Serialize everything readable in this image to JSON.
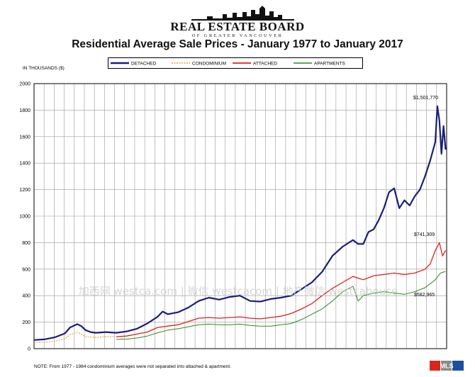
{
  "header": {
    "brand": "REAL ESTATE BOARD",
    "brand_sub": "OF GREATER VANCOUVER"
  },
  "watermark": "加西网 westca.com | 微信 westcacom | 地产微信 westcahouse",
  "note": "NOTE: From 1977 - 1984 condominium averages were not separated into attached & apartment.",
  "mls_logo": "MLS",
  "colors": {
    "detached": "#1a1f78",
    "condominium": "#e8a23c",
    "attached": "#e0201c",
    "apartments": "#2a8a1e",
    "grid": "#9a9a9a"
  },
  "chart_data": {
    "type": "line",
    "title": "Residential Average Sale Prices  -  January 1977 to January 2017",
    "ylabel": "IN THOUSANDS ($)",
    "xlabel": "",
    "ylim": [
      0,
      2000
    ],
    "yticks": [
      0,
      200,
      400,
      600,
      800,
      1000,
      1200,
      1400,
      1600,
      1800,
      2000
    ],
    "x_range": [
      1977.0,
      2017.1
    ],
    "grid": true,
    "vertical_grid_lines": 41,
    "legend_position": "top",
    "end_labels": [
      "$1,501,770",
      "$741,309",
      "$582,965"
    ],
    "series": [
      {
        "name": "DETACHED",
        "x": [
          1977.0,
          1978.0,
          1979.0,
          1980.0,
          1980.5,
          1981.2,
          1981.6,
          1982.0,
          1982.5,
          1983.0,
          1984.0,
          1985.0,
          1986.0,
          1987.0,
          1988.0,
          1989.0,
          1989.5,
          1990.0,
          1991.0,
          1992.0,
          1993.0,
          1994.0,
          1995.0,
          1996.0,
          1997.0,
          1998.0,
          1999.0,
          2000.0,
          2001.0,
          2002.0,
          2003.0,
          2004.0,
          2005.0,
          2006.0,
          2007.0,
          2008.0,
          2008.5,
          2009.0,
          2009.5,
          2010.0,
          2010.5,
          2011.0,
          2011.5,
          2012.0,
          2012.5,
          2013.0,
          2013.5,
          2014.0,
          2014.5,
          2015.0,
          2015.5,
          2016.0,
          2016.2,
          2016.4,
          2016.6,
          2016.8,
          2017.0
        ],
        "y": [
          65,
          70,
          85,
          115,
          160,
          185,
          170,
          140,
          125,
          120,
          125,
          120,
          130,
          150,
          190,
          240,
          280,
          260,
          275,
          310,
          360,
          385,
          370,
          390,
          400,
          360,
          355,
          375,
          385,
          400,
          450,
          500,
          580,
          700,
          770,
          820,
          790,
          790,
          880,
          900,
          970,
          1060,
          1180,
          1210,
          1060,
          1120,
          1080,
          1150,
          1200,
          1300,
          1420,
          1560,
          1830,
          1720,
          1470,
          1680,
          1502
        ]
      },
      {
        "name": "CONDOMINIUM",
        "x": [
          1977.0,
          1978.0,
          1979.0,
          1980.0,
          1980.5,
          1981.2,
          1981.6,
          1982.0,
          1983.0,
          1984.0,
          1984.9
        ],
        "y": [
          45,
          48,
          55,
          75,
          105,
          125,
          110,
          90,
          85,
          90,
          92
        ]
      },
      {
        "name": "ATTACHED",
        "x": [
          1985.0,
          1986.0,
          1987.0,
          1988.0,
          1989.0,
          1990.0,
          1991.0,
          1992.0,
          1993.0,
          1994.0,
          1995.0,
          1996.0,
          1997.0,
          1998.0,
          1999.0,
          2000.0,
          2001.0,
          2002.0,
          2003.0,
          2004.0,
          2005.0,
          2006.0,
          2007.0,
          2008.0,
          2009.0,
          2010.0,
          2011.0,
          2012.0,
          2013.0,
          2014.0,
          2015.0,
          2015.5,
          2016.0,
          2016.4,
          2016.7,
          2017.0
        ],
        "y": [
          90,
          95,
          110,
          125,
          160,
          170,
          180,
          205,
          230,
          235,
          230,
          235,
          240,
          230,
          225,
          235,
          245,
          265,
          300,
          340,
          400,
          455,
          500,
          545,
          520,
          550,
          560,
          570,
          560,
          570,
          600,
          640,
          740,
          800,
          700,
          741
        ]
      },
      {
        "name": "APARTMENTS",
        "x": [
          1985.0,
          1986.0,
          1987.0,
          1988.0,
          1989.0,
          1990.0,
          1991.0,
          1992.0,
          1993.0,
          1994.0,
          1995.0,
          1996.0,
          1997.0,
          1998.0,
          1999.0,
          2000.0,
          2001.0,
          2002.0,
          2003.0,
          2004.0,
          2005.0,
          2006.0,
          2007.0,
          2008.0,
          2008.5,
          2009.0,
          2010.0,
          2011.0,
          2012.0,
          2013.0,
          2014.0,
          2015.0,
          2016.0,
          2016.5,
          2017.0
        ],
        "y": [
          70,
          72,
          80,
          95,
          120,
          140,
          150,
          165,
          180,
          185,
          180,
          180,
          185,
          175,
          170,
          170,
          180,
          190,
          220,
          260,
          300,
          360,
          430,
          470,
          360,
          400,
          420,
          430,
          420,
          410,
          430,
          460,
          520,
          570,
          583
        ]
      }
    ]
  }
}
